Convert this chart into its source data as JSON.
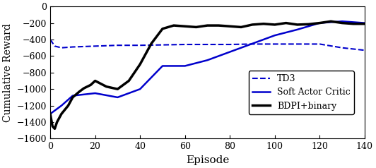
{
  "title": "",
  "xlabel": "Episode",
  "ylabel": "Cumulative Reward",
  "xlim": [
    0,
    140
  ],
  "ylim": [
    -1600,
    0
  ],
  "yticks": [
    0,
    -200,
    -400,
    -600,
    -800,
    -1000,
    -1200,
    -1400,
    -1600
  ],
  "xticks": [
    0,
    20,
    40,
    60,
    80,
    100,
    120,
    140
  ],
  "line_color": "#0000cc",
  "line_color_black": "#000000",
  "legend_labels": [
    "TD3",
    "Soft Actor Critic",
    "BDPI+binary"
  ],
  "td3": {
    "x": [
      0,
      2,
      5,
      10,
      20,
      30,
      40,
      50,
      60,
      70,
      80,
      90,
      100,
      110,
      120,
      130,
      140
    ],
    "y": [
      -400,
      -480,
      -500,
      -490,
      -480,
      -470,
      -470,
      -465,
      -460,
      -460,
      -460,
      -455,
      -455,
      -455,
      -455,
      -500,
      -530
    ]
  },
  "sac": {
    "x": [
      0,
      5,
      10,
      20,
      30,
      40,
      50,
      60,
      70,
      80,
      90,
      100,
      110,
      120,
      130,
      140
    ],
    "y": [
      -1300,
      -1200,
      -1080,
      -1050,
      -1100,
      -1000,
      -720,
      -720,
      -650,
      -550,
      -450,
      -350,
      -280,
      -200,
      -180,
      -200
    ]
  },
  "bdpi": {
    "x": [
      0,
      1,
      2,
      3,
      5,
      8,
      10,
      13,
      15,
      18,
      20,
      25,
      30,
      35,
      40,
      45,
      50,
      55,
      60,
      65,
      70,
      75,
      80,
      85,
      90,
      95,
      100,
      105,
      110,
      115,
      120,
      125,
      130,
      135,
      140
    ],
    "y": [
      -1300,
      -1450,
      -1480,
      -1400,
      -1300,
      -1200,
      -1100,
      -1030,
      -990,
      -950,
      -900,
      -970,
      -1000,
      -900,
      -700,
      -450,
      -270,
      -230,
      -240,
      -250,
      -230,
      -230,
      -240,
      -250,
      -220,
      -210,
      -220,
      -200,
      -220,
      -215,
      -200,
      -180,
      -200,
      -210,
      -210
    ]
  }
}
